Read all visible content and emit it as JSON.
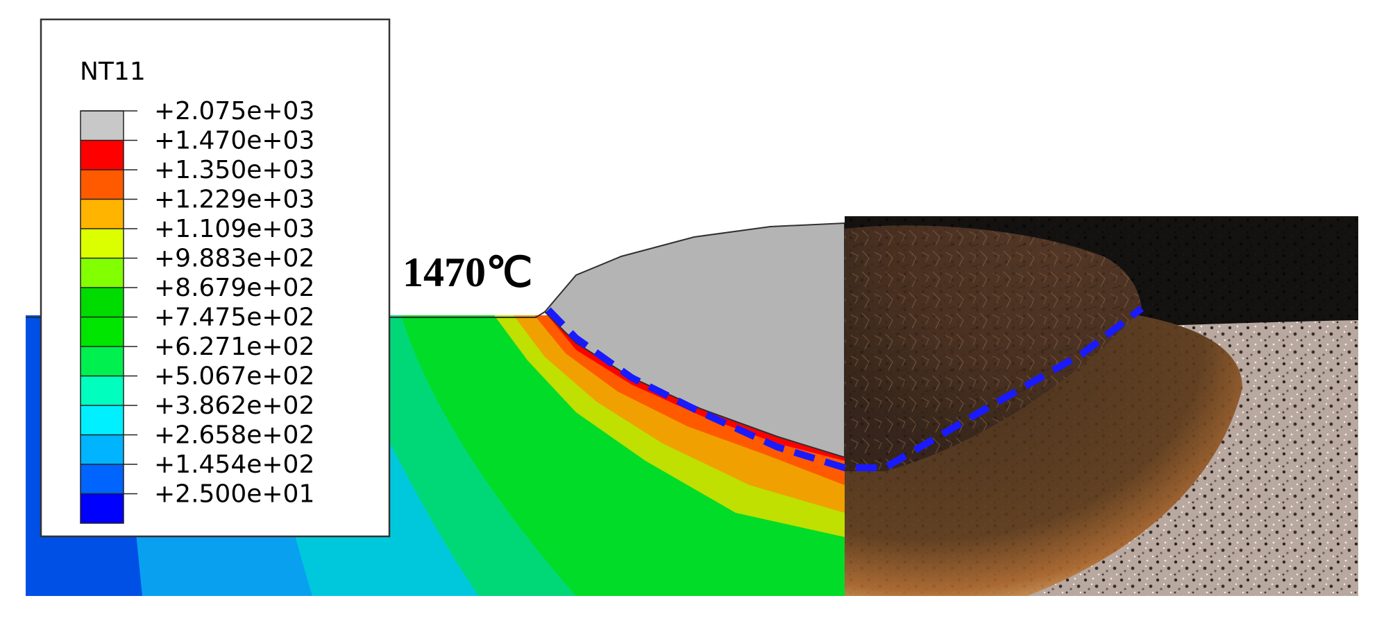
{
  "legend": {
    "title": "NT11",
    "levels": [
      {
        "label": "+2.075e+03",
        "value": 2075
      },
      {
        "label": "+1.470e+03",
        "value": 1470
      },
      {
        "label": "+1.350e+03",
        "value": 1350
      },
      {
        "label": "+1.229e+03",
        "value": 1229
      },
      {
        "label": "+1.109e+03",
        "value": 1109
      },
      {
        "label": "+9.883e+02",
        "value": 988.3
      },
      {
        "label": "+8.679e+02",
        "value": 867.9
      },
      {
        "label": "+7.475e+02",
        "value": 747.5
      },
      {
        "label": "+6.271e+02",
        "value": 627.1
      },
      {
        "label": "+5.067e+02",
        "value": 506.7
      },
      {
        "label": "+3.862e+02",
        "value": 386.2
      },
      {
        "label": "+2.658e+02",
        "value": 265.8
      },
      {
        "label": "+1.454e+02",
        "value": 145.4
      },
      {
        "label": "+2.500e+01",
        "value": 25
      }
    ],
    "band_colors": [
      "#c8c8c8",
      "#ff0000",
      "#ff5a00",
      "#ffb400",
      "#dcff00",
      "#82ff00",
      "#00dc00",
      "#00e600",
      "#00f050",
      "#00ffbe",
      "#00f0ff",
      "#00b4ff",
      "#0064ff",
      "#0000ff"
    ]
  },
  "annotation": {
    "isotherm_label": "1470℃"
  },
  "colors": {
    "fusion_boundary": "#1a1aff",
    "weld_bead_fill": "#b4b4b4",
    "micrograph_background": "#050505"
  }
}
